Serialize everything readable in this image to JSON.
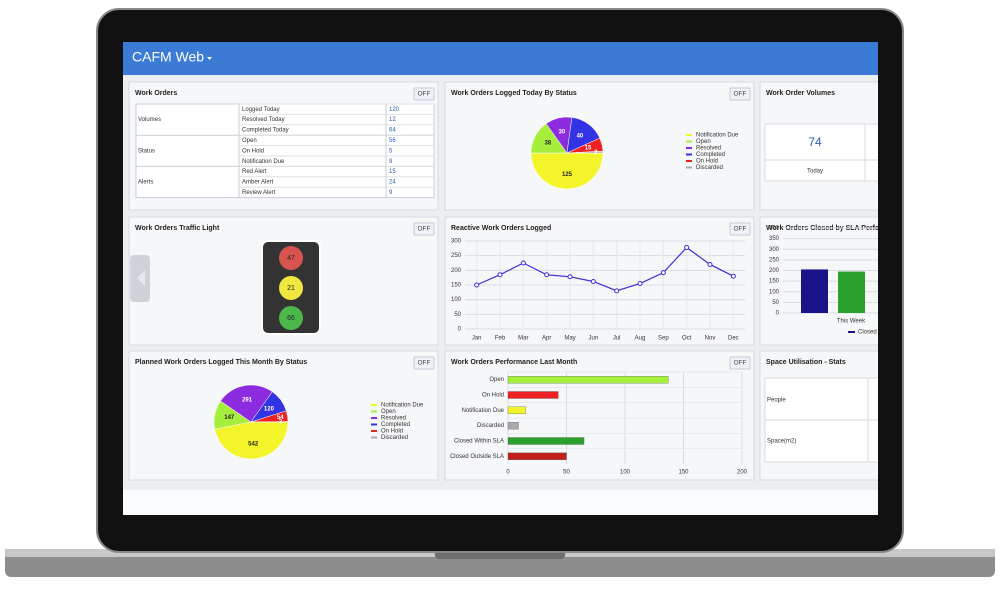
{
  "header": {
    "title": "CAFM Web"
  },
  "work_orders": {
    "title": "Work Orders",
    "toggle": "OFF",
    "groups": [
      {
        "name": "Volumes",
        "rows": [
          {
            "label": "Logged Today",
            "value": 120
          },
          {
            "label": "Resolved Today",
            "value": 12
          },
          {
            "label": "Completed Today",
            "value": 64
          }
        ]
      },
      {
        "name": "Status",
        "rows": [
          {
            "label": "Open",
            "value": 56
          },
          {
            "label": "On Hold",
            "value": 5
          },
          {
            "label": "Notification Due",
            "value": 9
          }
        ]
      },
      {
        "name": "Alerts",
        "rows": [
          {
            "label": "Red Alert",
            "value": 15
          },
          {
            "label": "Amber Alert",
            "value": 24
          },
          {
            "label": "Review Alert",
            "value": 9
          }
        ]
      }
    ]
  },
  "volumes": {
    "title": "Work Order Volumes",
    "value": 74,
    "label": "Today"
  },
  "traffic_light": {
    "title": "Work Orders Traffic Light",
    "toggle": "OFF",
    "values": [
      47,
      21,
      66
    ],
    "colors": [
      "#d9534f",
      "#f2e640",
      "#4cb84c"
    ]
  },
  "space": {
    "title": "Space Utilisation - Stats",
    "rows": [
      "People",
      "Space(m2)"
    ]
  },
  "chart_data": [
    {
      "type": "pie",
      "title": "Work Orders Logged Today By Status",
      "toggle": "OFF",
      "categories": [
        "Notification Due",
        "Open",
        "Resolved",
        "Completed",
        "On Hold",
        "Discarded"
      ],
      "values": [
        125,
        38,
        30,
        40,
        15,
        2
      ],
      "colors": [
        "#f4f42a",
        "#a6ef3c",
        "#8c2be0",
        "#3333e6",
        "#ee2222",
        "#aaaaaa"
      ]
    },
    {
      "type": "line",
      "title": "Reactive Work Orders Logged",
      "toggle": "OFF",
      "categories": [
        "Jan",
        "Feb",
        "Mar",
        "Apr",
        "May",
        "Jun",
        "Jul",
        "Aug",
        "Sep",
        "Oct",
        "Nov",
        "Dec"
      ],
      "values": [
        150,
        185,
        225,
        185,
        178,
        162,
        130,
        155,
        192,
        278,
        220,
        180
      ],
      "color": "#3d2fd6",
      "ylim": [
        0,
        300
      ],
      "yticks": [
        0,
        50,
        100,
        150,
        200,
        250,
        300
      ],
      "grid": true
    },
    {
      "type": "bar",
      "title": "Work Orders Closed by SLA Perfo",
      "categories": [
        "This Week"
      ],
      "series": [
        {
          "name": "Closed",
          "color": "#1a1288",
          "values": [
            205
          ]
        },
        {
          "color": "#2ca02c",
          "values": [
            195
          ]
        }
      ],
      "ylim": [
        0,
        400
      ],
      "yticks": [
        0,
        50,
        100,
        150,
        200,
        250,
        300,
        350,
        400
      ],
      "grid": true
    },
    {
      "type": "pie",
      "title": "Planned Work Orders Logged This Month By Status",
      "toggle": "OFF",
      "categories": [
        "Notification Due",
        "Open",
        "Resolved",
        "Completed",
        "On Hold",
        "Discarded"
      ],
      "values": [
        542,
        147,
        291,
        120,
        54,
        2
      ],
      "colors": [
        "#f4f42a",
        "#a6ef3c",
        "#8c2be0",
        "#3333e6",
        "#ee2222",
        "#aaaaaa"
      ]
    },
    {
      "type": "hbar",
      "title": "Work Orders Performance Last Month",
      "toggle": "OFF",
      "categories": [
        "Open",
        "On Hold",
        "Notification Due",
        "Discarded",
        "Closed Within SLA",
        "Closed Outside SLA"
      ],
      "values": [
        137,
        43,
        15,
        9,
        65,
        50
      ],
      "colors": [
        "#a6ef3c",
        "#ee2222",
        "#f4f42a",
        "#aaaaaa",
        "#2ca02c",
        "#c0201c"
      ],
      "xlim": [
        0,
        200
      ],
      "xticks": [
        0,
        50,
        100,
        150,
        200
      ],
      "grid": true
    }
  ]
}
